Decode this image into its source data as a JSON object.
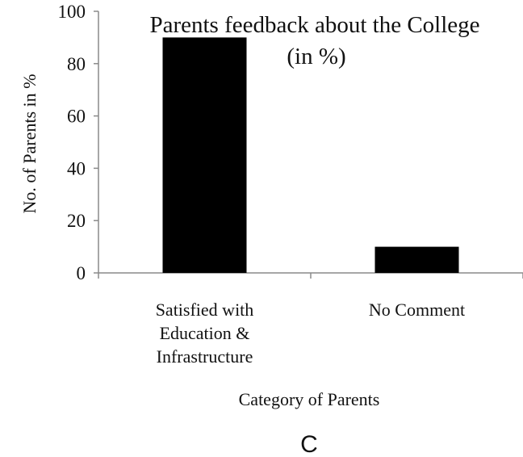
{
  "chart_data": {
    "type": "bar",
    "title": "Parents feedback about the College",
    "title_line2": "(in %)",
    "xlabel": "Category of Parents",
    "ylabel": "No. of Parents in %",
    "categories": [
      [
        "Satisfied with",
        "Education &",
        "Infrastructure"
      ],
      [
        "No Comment"
      ]
    ],
    "values": [
      90,
      10
    ],
    "ylim": [
      0,
      100
    ],
    "yticks": [
      "0",
      "20",
      "40",
      "60",
      "80",
      "100"
    ],
    "bar_color": "#000000",
    "grid": false,
    "legend": "none"
  },
  "panel_label": "C"
}
